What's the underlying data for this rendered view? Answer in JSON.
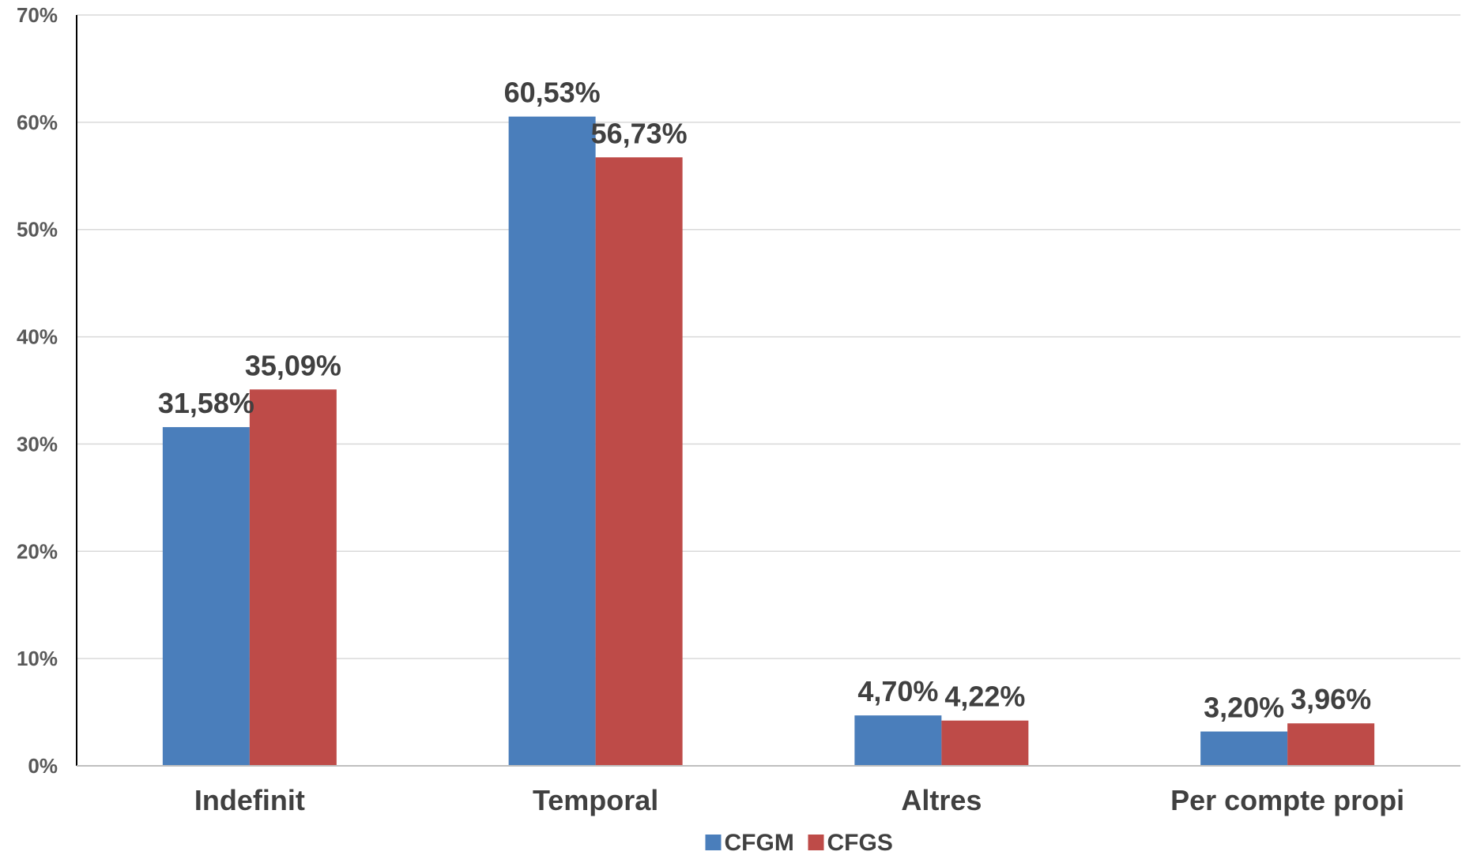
{
  "chart_data": {
    "type": "bar",
    "categories": [
      "Indefinit",
      "Temporal",
      "Altres",
      "Per compte propi"
    ],
    "series": [
      {
        "name": "CFGM",
        "color": "#4A7EBB",
        "values": [
          31.58,
          60.53,
          4.7,
          3.2
        ],
        "labels": [
          "31,58%",
          "60,53%",
          "4,70%",
          "3,20%"
        ]
      },
      {
        "name": "CFGS",
        "color": "#BE4B48",
        "values": [
          35.09,
          56.73,
          4.22,
          3.96
        ],
        "labels": [
          "35,09%",
          "56,73%",
          "4,22%",
          "3,96%"
        ]
      }
    ],
    "ylim": [
      0,
      70
    ],
    "yticks": [
      0,
      10,
      20,
      30,
      40,
      50,
      60,
      70
    ],
    "ytick_labels": [
      "0%",
      "10%",
      "20%",
      "30%",
      "40%",
      "50%",
      "60%",
      "70%"
    ],
    "grid": true,
    "legend": "bottom",
    "title": "",
    "xlabel": "",
    "ylabel": ""
  }
}
